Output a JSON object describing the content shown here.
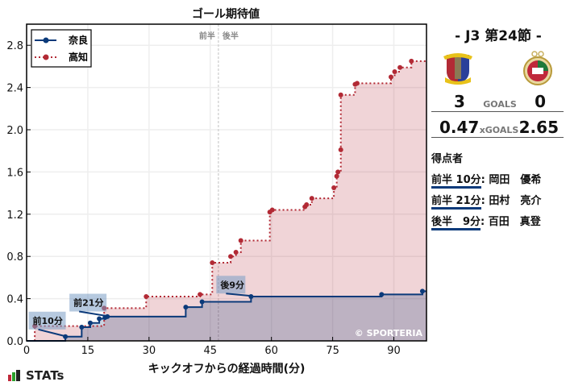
{
  "chart_data": {
    "type": "line",
    "title": "ゴール期待値",
    "xlabel": "キックオフからの経過時間(分)",
    "ylabel": "",
    "xlim": [
      0,
      98
    ],
    "ylim": [
      0,
      3.0
    ],
    "xticks": [
      0,
      15,
      30,
      45,
      60,
      75,
      90
    ],
    "yticks": [
      "0.0",
      "0.4",
      "0.8",
      "1.2",
      "1.6",
      "2.0",
      "2.4",
      "2.8"
    ],
    "grid": true,
    "legend_position": "upper left",
    "halftime_marker": {
      "x": 47,
      "labels": [
        "前半",
        "後半"
      ]
    },
    "step": true,
    "series": [
      {
        "name": "奈良",
        "color": "#0b3a7a",
        "style": "solid",
        "points": [
          [
            9.5,
            0.04
          ],
          [
            13.5,
            0.13
          ],
          [
            15.6,
            0.17
          ],
          [
            17.8,
            0.21
          ],
          [
            19.2,
            0.22
          ],
          [
            19.8,
            0.23
          ],
          [
            39.0,
            0.32
          ],
          [
            43.0,
            0.37
          ],
          [
            55.0,
            0.42
          ],
          [
            87.0,
            0.44
          ],
          [
            97.0,
            0.47
          ],
          [
            98,
            0.47
          ]
        ]
      },
      {
        "name": "高知",
        "color": "#b22a35",
        "style": "dotted",
        "points": [
          [
            2.0,
            0.14
          ],
          [
            19.0,
            0.31
          ],
          [
            29.3,
            0.42
          ],
          [
            42.5,
            0.44
          ],
          [
            45.5,
            0.74
          ],
          [
            50.0,
            0.8
          ],
          [
            51.3,
            0.84
          ],
          [
            52.5,
            0.95
          ],
          [
            59.6,
            1.22
          ],
          [
            60.2,
            1.24
          ],
          [
            68.2,
            1.27
          ],
          [
            68.6,
            1.29
          ],
          [
            69.9,
            1.35
          ],
          [
            75.3,
            1.45
          ],
          [
            76.0,
            1.56
          ],
          [
            76.3,
            1.6
          ],
          [
            77.0,
            1.81
          ],
          [
            77.0,
            2.33
          ],
          [
            80.5,
            2.43
          ],
          [
            81.0,
            2.44
          ],
          [
            89.3,
            2.5
          ],
          [
            90.2,
            2.55
          ],
          [
            91.5,
            2.59
          ],
          [
            94.3,
            2.65
          ],
          [
            98,
            2.65
          ]
        ]
      }
    ],
    "annotations": [
      {
        "label": "前10分",
        "x": 9.5,
        "y": 0.04,
        "box_x": 0.5,
        "box_y": 0.2
      },
      {
        "label": "前21分",
        "x": 19.8,
        "y": 0.23,
        "box_x": 10.5,
        "box_y": 0.37
      },
      {
        "label": "後9分",
        "x": 55.0,
        "y": 0.42,
        "box_x": 46.5,
        "box_y": 0.54
      }
    ],
    "watermark": "© SPORTERIA"
  },
  "match": {
    "round": "-  J3 第24節  -",
    "home": {
      "name": "奈良",
      "goals": "3",
      "xg": "0.47"
    },
    "away": {
      "name": "高知",
      "goals": "0",
      "xg": "2.65"
    },
    "goals_label": "GOALS",
    "xgoals_label": "xGOALS"
  },
  "scorers": {
    "heading": "得点者",
    "items": [
      {
        "time": "前半 10分",
        "name": ": 岡田　優希"
      },
      {
        "time": "前半 21分",
        "name": ": 田村　亮介"
      },
      {
        "time": "後半　9分",
        "name": ": 百田　真登"
      }
    ]
  },
  "branding": {
    "stats": "STATs"
  }
}
